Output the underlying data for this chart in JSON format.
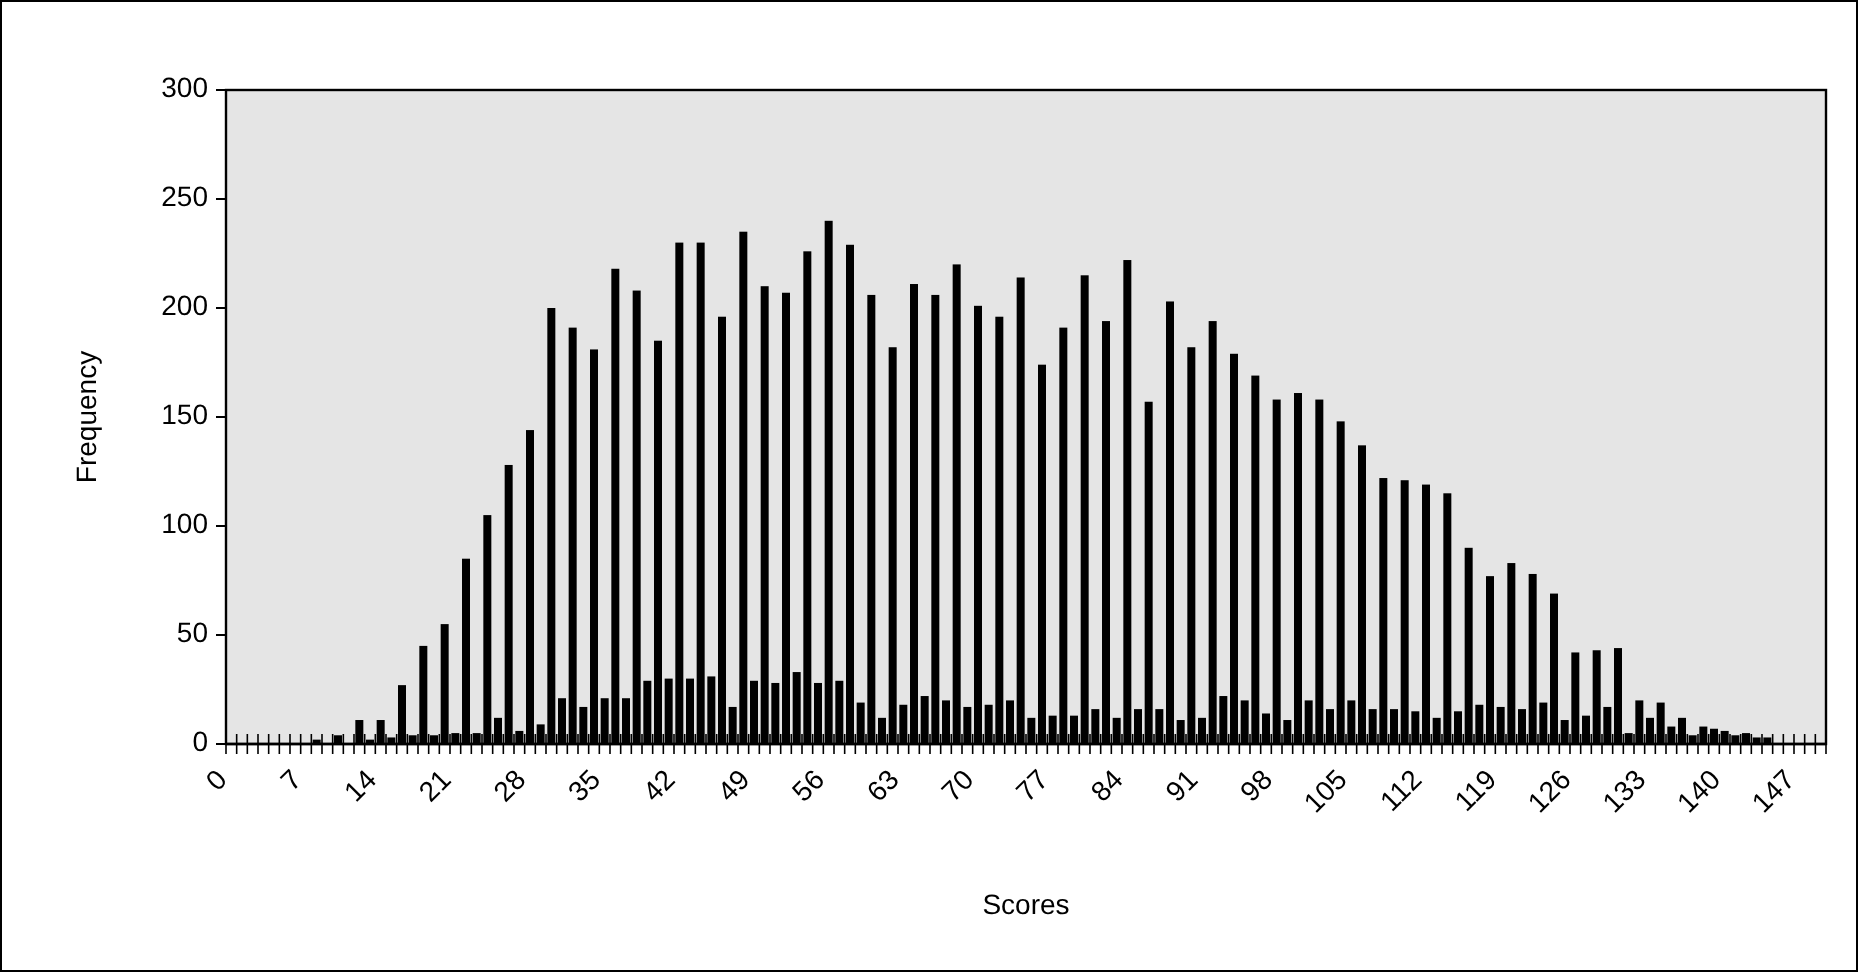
{
  "chart_data": {
    "type": "bar",
    "xlabel": "Scores",
    "ylabel": "Frequency",
    "categories": [
      "0",
      null,
      null,
      null,
      null,
      null,
      null,
      "7",
      null,
      null,
      null,
      null,
      null,
      null,
      "14",
      null,
      null,
      null,
      null,
      null,
      null,
      "21",
      null,
      null,
      null,
      null,
      null,
      null,
      "28",
      null,
      null,
      null,
      null,
      null,
      null,
      "35",
      null,
      null,
      null,
      null,
      null,
      null,
      "42",
      null,
      null,
      null,
      null,
      null,
      null,
      "49",
      null,
      null,
      null,
      null,
      null,
      null,
      "56",
      null,
      null,
      null,
      null,
      null,
      null,
      "63",
      null,
      null,
      null,
      null,
      null,
      null,
      "70",
      null,
      null,
      null,
      null,
      null,
      null,
      "77",
      null,
      null,
      null,
      null,
      null,
      null,
      "84",
      null,
      null,
      null,
      null,
      null,
      null,
      "91",
      null,
      null,
      null,
      null,
      null,
      null,
      "98",
      null,
      null,
      null,
      null,
      null,
      null,
      "105",
      null,
      null,
      null,
      null,
      null,
      null,
      "112",
      null,
      null,
      null,
      null,
      null,
      null,
      "119",
      null,
      null,
      null,
      null,
      null,
      null,
      "126",
      null,
      null,
      null,
      null,
      null,
      null,
      "133",
      null,
      null,
      null,
      null,
      null,
      null,
      "140",
      null,
      null,
      null,
      null,
      null,
      null,
      "147",
      null,
      null
    ],
    "values": [
      0,
      0,
      0,
      0,
      0,
      0,
      0,
      0,
      2,
      0,
      4,
      null,
      11,
      2,
      11,
      3,
      27,
      4,
      45,
      4,
      55,
      5,
      85,
      5,
      105,
      12,
      128,
      6,
      144,
      9,
      200,
      21,
      191,
      17,
      181,
      21,
      218,
      21,
      208,
      29,
      185,
      30,
      230,
      30,
      230,
      31,
      196,
      17,
      235,
      29,
      210,
      28,
      207,
      33,
      226,
      28,
      240,
      29,
      229,
      19,
      206,
      12,
      182,
      18,
      211,
      22,
      206,
      20,
      220,
      17,
      201,
      18,
      196,
      20,
      214,
      12,
      174,
      13,
      191,
      13,
      215,
      16,
      194,
      12,
      222,
      16,
      157,
      16,
      203,
      11,
      182,
      12,
      194,
      22,
      179,
      20,
      169,
      14,
      158,
      11,
      161,
      20,
      158,
      16,
      148,
      20,
      137,
      16,
      122,
      16,
      121,
      15,
      119,
      12,
      115,
      15,
      90,
      18,
      77,
      17,
      83,
      16,
      78,
      19,
      69,
      11,
      42,
      13,
      43,
      17,
      44,
      5,
      20,
      12,
      19,
      8,
      12,
      4,
      8,
      7,
      6,
      4,
      5,
      3,
      3,
      0,
      0,
      0,
      0,
      0
    ],
    "color": "#000000",
    "ylim": [
      0,
      300
    ],
    "yticks": [
      0,
      50,
      100,
      150,
      200,
      250,
      300
    ],
    "grid": false
  }
}
